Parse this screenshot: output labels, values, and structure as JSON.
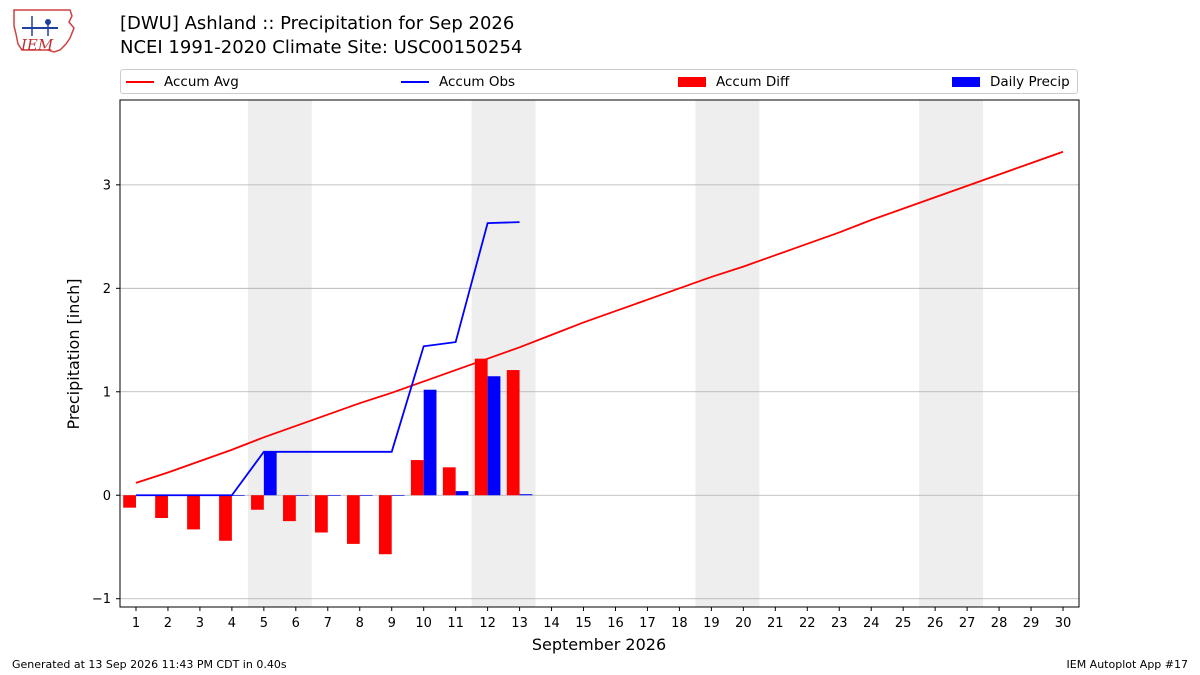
{
  "header": {
    "title_line1": "[DWU] Ashland :: Precipitation for Sep 2026",
    "title_line2": "NCEI 1991-2020 Climate Site: USC00150254",
    "logo_text": "IEM"
  },
  "footer": {
    "generated": "Generated at 13 Sep 2026 11:43 PM CDT in 0.40s",
    "app": "IEM Autoplot App #17"
  },
  "colors": {
    "avg": "#ff0000",
    "obs": "#0000ff",
    "diff": "#ff0000",
    "daily": "#0000ff",
    "weekend": "#eeeeee",
    "grid": "#b0b0b0"
  },
  "chart_data": {
    "type": "bar",
    "xlabel": "September 2026",
    "ylabel": "Precipitation [inch]",
    "xlim": [
      0.5,
      30.5
    ],
    "ylim": [
      -1.08,
      3.82
    ],
    "yticks": [
      -1,
      0,
      1,
      2,
      3
    ],
    "days": [
      1,
      2,
      3,
      4,
      5,
      6,
      7,
      8,
      9,
      10,
      11,
      12,
      13,
      14,
      15,
      16,
      17,
      18,
      19,
      20,
      21,
      22,
      23,
      24,
      25,
      26,
      27,
      28,
      29,
      30
    ],
    "weekend_days": [
      5,
      6,
      12,
      13,
      19,
      20,
      26,
      27
    ],
    "grid": true,
    "legend_placement": "top",
    "series": [
      {
        "name": "Accum Avg",
        "kind": "line",
        "values": [
          0.12,
          0.22,
          0.33,
          0.44,
          0.56,
          0.67,
          0.78,
          0.89,
          0.99,
          1.1,
          1.21,
          1.32,
          1.43,
          1.55,
          1.67,
          1.78,
          1.89,
          2.0,
          2.11,
          2.21,
          2.32,
          2.43,
          2.54,
          2.66,
          2.77,
          2.88,
          2.99,
          3.1,
          3.21,
          3.32
        ]
      },
      {
        "name": "Accum Obs",
        "kind": "line",
        "values": [
          0.0,
          0.0,
          0.0,
          0.0,
          0.42,
          0.42,
          0.42,
          0.42,
          0.42,
          1.44,
          1.48,
          2.63,
          2.64
        ]
      },
      {
        "name": "Accum Diff",
        "kind": "bar",
        "values": [
          -0.12,
          -0.22,
          -0.33,
          -0.44,
          -0.14,
          -0.25,
          -0.36,
          -0.47,
          -0.57,
          0.34,
          0.27,
          1.32,
          1.21
        ]
      },
      {
        "name": "Daily Precip",
        "kind": "bar",
        "values": [
          0.0,
          0.0,
          0.0,
          0.0,
          0.42,
          0.0,
          0.0,
          0.0,
          0.0,
          1.02,
          0.04,
          1.15,
          0.01
        ]
      }
    ]
  }
}
